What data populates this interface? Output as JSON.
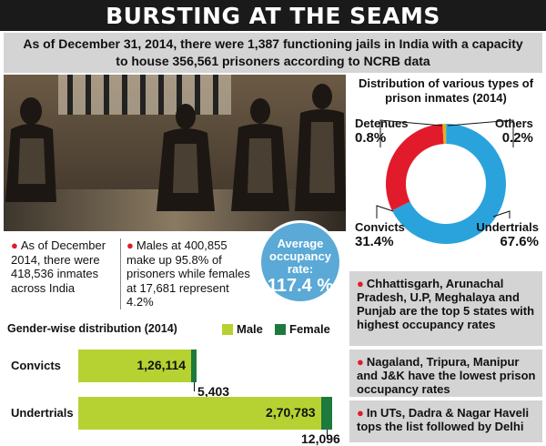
{
  "header": {
    "title": "BURSTING AT THE SEAMS",
    "subtitle_line1": "As of December 31, 2014, there were 1,387 functioning jails in India with a capacity",
    "subtitle_line2": "to house 356,561 prisoners according to NCRB data"
  },
  "facts": {
    "inmates_text": "As of December 2014, there were 418,536 inmates across India",
    "gender_text": "Males at 400,855 make up 95.8% of prisoners while females at 17,681 represent 4.2%"
  },
  "occupancy": {
    "label": "Average occupancy rate:",
    "value": "117.4 %"
  },
  "colors": {
    "male": "#b6d232",
    "female": "#1e7a3c",
    "undertrials": "#2aa3dc",
    "convicts": "#e11b2b",
    "detenues": "#f2a81d",
    "others": "#6dbe45",
    "bubble": "#5aa9d6"
  },
  "chart_data": [
    {
      "type": "bar",
      "title": "Gender-wise distribution (2014)",
      "categories": [
        "Convicts",
        "Undertrials"
      ],
      "series": [
        {
          "name": "Male",
          "values": [
            126114,
            270783
          ],
          "labels": [
            "1,26,114",
            "2,70,783"
          ]
        },
        {
          "name": "Female",
          "values": [
            5403,
            12096
          ],
          "labels": [
            "5,403",
            "12,096"
          ]
        }
      ],
      "orientation": "horizontal",
      "stacked": true,
      "xlim": [
        0,
        290000
      ],
      "legend_position": "top-right"
    },
    {
      "type": "pie",
      "title": "Distribution of various types of prison inmates (2014)",
      "donut": true,
      "labels": [
        "Undertrials",
        "Convicts",
        "Detenues",
        "Others"
      ],
      "values": [
        67.6,
        31.4,
        0.8,
        0.2
      ],
      "value_labels": [
        "67.6%",
        "31.4%",
        "0.8%",
        "0.2%"
      ]
    }
  ],
  "states": {
    "highest": "Chhattisgarh, Arunachal Pradesh, U.P, Meghalaya and Punjab are the top 5 states with highest occupancy rates",
    "lowest": "Nagaland, Tripura, Manipur and J&K have the lowest prison occupancy rates",
    "uts": "In UTs, Dadra & Nagar Haveli tops the list followed by Delhi"
  }
}
